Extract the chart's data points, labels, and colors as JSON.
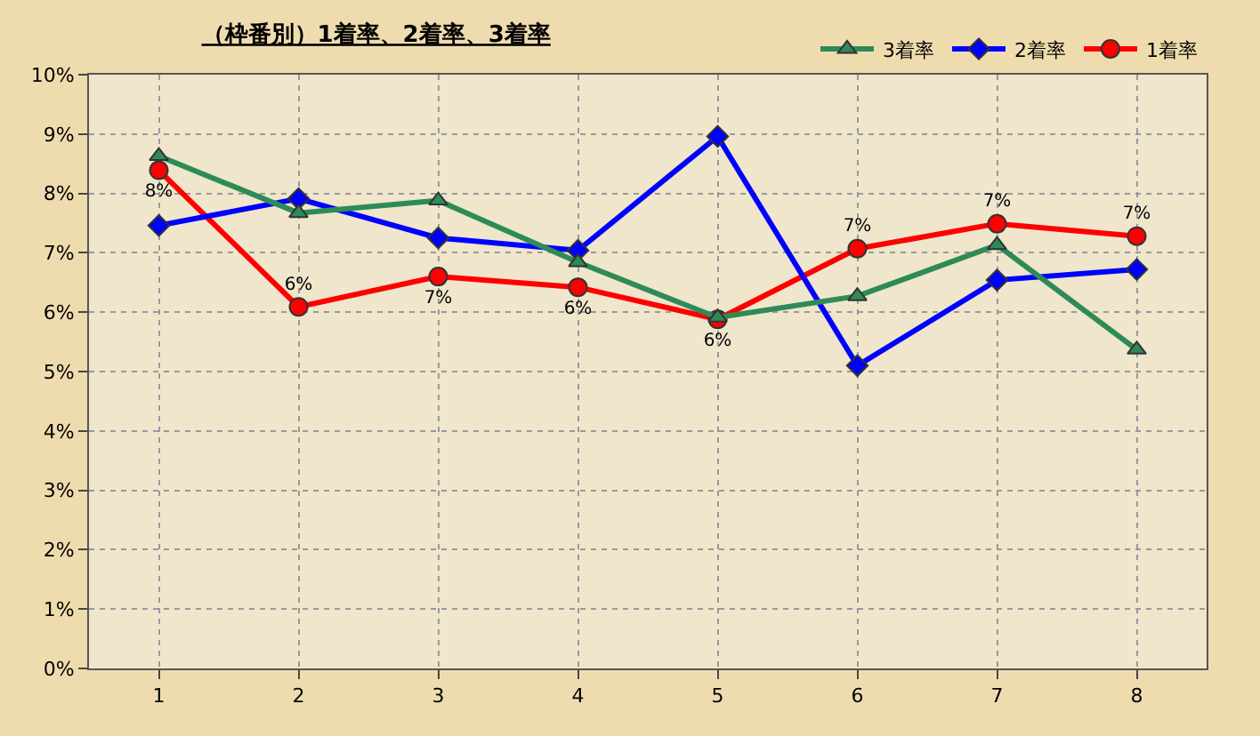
{
  "chart_data": {
    "type": "line",
    "title": "（枠番別）1着率、2着率、3着率",
    "categories": [
      "1",
      "2",
      "3",
      "4",
      "5",
      "6",
      "7",
      "8"
    ],
    "series": [
      {
        "name": "3着率",
        "color": "#2e8b57",
        "marker": "triangle",
        "values": [
          8.63,
          7.67,
          7.88,
          6.84,
          5.91,
          6.27,
          7.13,
          5.37
        ]
      },
      {
        "name": "2着率",
        "color": "#0000ff",
        "marker": "diamond",
        "values": [
          7.46,
          7.91,
          7.25,
          7.04,
          8.96,
          5.1,
          6.54,
          6.72
        ]
      },
      {
        "name": "1着率",
        "color": "#ff0000",
        "marker": "circle",
        "values": [
          8.39,
          6.09,
          6.6,
          6.42,
          5.88,
          7.07,
          7.49,
          7.28
        ],
        "value_labels": [
          "8%",
          "6%",
          "7%",
          "6%",
          "6%",
          "7%",
          "7%",
          "7%"
        ]
      }
    ],
    "ylim": [
      0,
      10
    ],
    "yticks": [
      {
        "value": 0,
        "label": "0%"
      },
      {
        "value": 1,
        "label": "1%"
      },
      {
        "value": 2,
        "label": "2%"
      },
      {
        "value": 3,
        "label": "3%"
      },
      {
        "value": 4,
        "label": "4%"
      },
      {
        "value": 5,
        "label": "5%"
      },
      {
        "value": 6,
        "label": "6%"
      },
      {
        "value": 7,
        "label": "7%"
      },
      {
        "value": 8,
        "label": "8%"
      },
      {
        "value": 9,
        "label": "9%"
      },
      {
        "value": 10,
        "label": "10%"
      }
    ],
    "grid": true,
    "legend": "top right",
    "line_style": "solid"
  }
}
